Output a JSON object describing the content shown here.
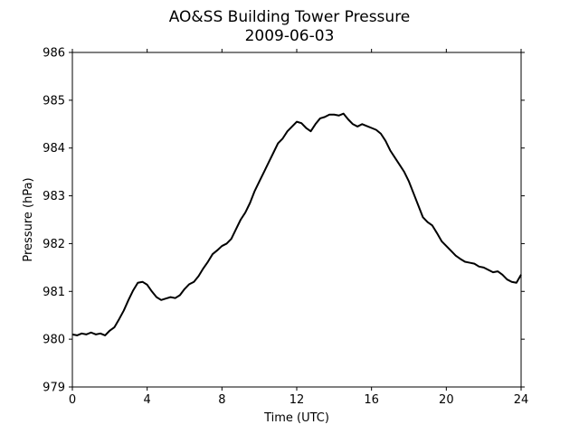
{
  "chart_data": {
    "type": "line",
    "title": "AO&SS Building Tower Pressure",
    "subtitle": "2009-06-03",
    "xlabel": "Time (UTC)",
    "ylabel": "Pressure (hPa)",
    "xlim": [
      0,
      24
    ],
    "ylim": [
      979,
      986
    ],
    "xticks": [
      0,
      4,
      8,
      12,
      16,
      20,
      24
    ],
    "yticks": [
      979,
      980,
      981,
      982,
      983,
      984,
      985,
      986
    ],
    "grid": false,
    "line_color": "#000000",
    "series": [
      {
        "x": [
          0,
          0.25,
          0.5,
          0.75,
          1.0,
          1.25,
          1.5,
          1.75,
          2.0,
          2.25,
          2.5,
          2.75,
          3.0,
          3.25,
          3.5,
          3.75,
          4.0,
          4.25,
          4.5,
          4.75,
          5.0,
          5.25,
          5.5,
          5.75,
          6.0,
          6.25,
          6.5,
          6.75,
          7.0,
          7.25,
          7.5,
          7.75,
          8.0,
          8.25,
          8.5,
          8.75,
          9.0,
          9.25,
          9.5,
          9.75,
          10.0,
          10.25,
          10.5,
          10.75,
          11.0,
          11.25,
          11.5,
          11.75,
          12.0,
          12.25,
          12.5,
          12.75,
          13.0,
          13.25,
          13.5,
          13.75,
          14.0,
          14.25,
          14.5,
          14.75,
          15.0,
          15.25,
          15.5,
          15.75,
          16.0,
          16.25,
          16.5,
          16.75,
          17.0,
          17.25,
          17.5,
          17.75,
          18.0,
          18.25,
          18.5,
          18.75,
          19.0,
          19.25,
          19.5,
          19.75,
          20.0,
          20.25,
          20.5,
          20.75,
          21.0,
          21.25,
          21.5,
          21.75,
          22.0,
          22.25,
          22.5,
          22.75,
          23.0,
          23.25,
          23.5,
          23.75,
          24.0
        ],
        "values": [
          980.1,
          980.08,
          980.12,
          980.1,
          980.14,
          980.1,
          980.12,
          980.08,
          980.18,
          980.25,
          980.42,
          980.6,
          980.82,
          981.02,
          981.18,
          981.2,
          981.14,
          981.0,
          980.88,
          980.82,
          980.85,
          980.88,
          980.86,
          980.92,
          981.05,
          981.15,
          981.2,
          981.32,
          981.48,
          981.62,
          981.78,
          981.86,
          981.95,
          982.0,
          982.1,
          982.3,
          982.5,
          982.65,
          982.85,
          983.1,
          983.3,
          983.5,
          983.7,
          983.9,
          984.1,
          984.2,
          984.35,
          984.45,
          984.55,
          984.52,
          984.42,
          984.35,
          984.5,
          984.62,
          984.65,
          984.7,
          984.7,
          984.68,
          984.72,
          984.6,
          984.5,
          984.45,
          984.5,
          984.46,
          984.42,
          984.38,
          984.3,
          984.15,
          983.95,
          983.8,
          983.65,
          983.5,
          983.3,
          983.05,
          982.8,
          982.55,
          982.45,
          982.38,
          982.22,
          982.05,
          981.95,
          981.85,
          981.75,
          981.68,
          981.62,
          981.6,
          981.58,
          981.52,
          981.5,
          981.45,
          981.4,
          981.42,
          981.35,
          981.25,
          981.2,
          981.18,
          981.35
        ]
      }
    ]
  }
}
